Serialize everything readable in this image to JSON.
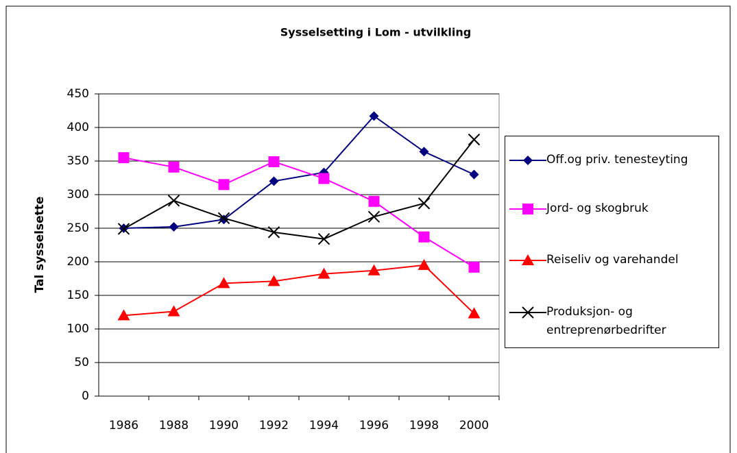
{
  "chart_data": {
    "type": "line",
    "title": "Sysselsetting i Lom - utvilkling",
    "y_label": "Tal sysselsette",
    "categories": [
      "1986",
      "1988",
      "1990",
      "1992",
      "1994",
      "1996",
      "1998",
      "2000"
    ],
    "series": [
      {
        "name": "Off.og priv. tenesteyting",
        "color": "#000080",
        "marker": "diamond",
        "values": [
          250,
          252,
          263,
          320,
          333,
          417,
          364,
          330
        ]
      },
      {
        "name": "Jord- og skogbruk",
        "color": "#ff00ff",
        "marker": "square",
        "values": [
          355,
          341,
          315,
          349,
          324,
          290,
          237,
          192
        ]
      },
      {
        "name": "Reiseliv og varehandel",
        "color": "#ff0000",
        "marker": "triangle",
        "values": [
          120,
          126,
          168,
          171,
          182,
          187,
          195,
          123
        ]
      },
      {
        "name": "Produksjon- og entreprenørbedrifter",
        "color": "#000000",
        "marker": "x",
        "values": [
          249,
          291,
          265,
          244,
          234,
          267,
          287,
          382
        ]
      }
    ],
    "ylim": [
      0,
      450
    ],
    "yticks": [
      0,
      50,
      100,
      150,
      200,
      250,
      300,
      350,
      400,
      450
    ],
    "grid": true,
    "legend": "right"
  }
}
